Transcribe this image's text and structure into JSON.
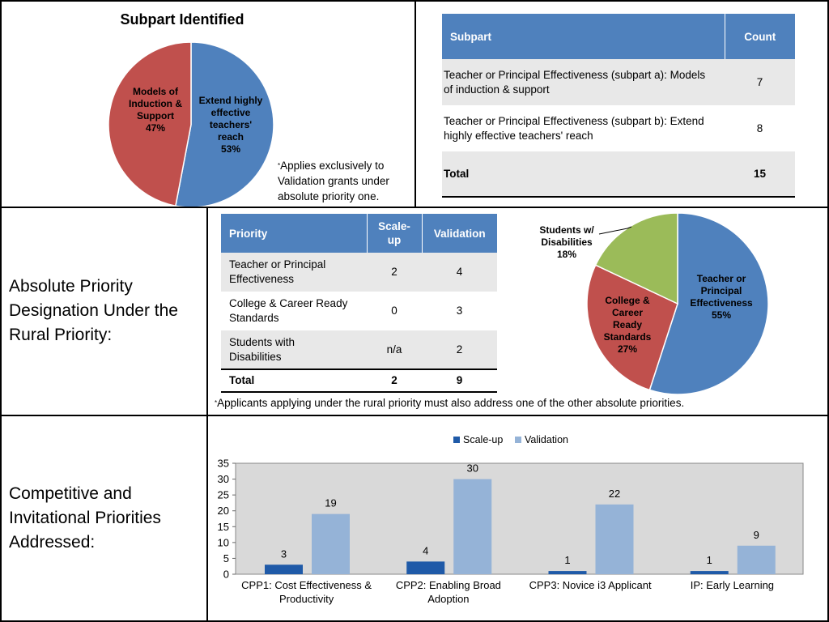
{
  "subpart": {
    "title": "Subpart Identified",
    "note": "Applies exclusively to Validation grants under absolute priority one.",
    "note_mark": "*",
    "table": {
      "headers": [
        "Subpart",
        "Count"
      ],
      "rows": [
        {
          "label": "Teacher or Principal Effectiveness (subpart a): Models of induction & support",
          "count": "7"
        },
        {
          "label": "Teacher or Principal Effectiveness (subpart b): Extend highly effective teachers' reach",
          "count": "8"
        }
      ],
      "total_label": "Total",
      "total_count": "15"
    }
  },
  "rural": {
    "label": "Absolute Priority Designation Under the Rural Priority:",
    "label_lines": [
      "Absolute Priority",
      "Designation Under the",
      "Rural Priority:"
    ],
    "note": "Applicants applying under the rural priority must also address one of the other absolute priorities.",
    "note_mark": "*",
    "table": {
      "headers": [
        "Priority",
        "Scale-up",
        "Validation"
      ],
      "header_scaleup_lines": [
        "Scale-",
        "up"
      ],
      "rows": [
        {
          "label_lines": [
            "Teacher or Principal",
            "Effectiveness"
          ],
          "scaleup": "2",
          "validation": "4"
        },
        {
          "label_lines": [
            "College & Career Ready",
            "Standards"
          ],
          "scaleup": "0",
          "validation": "3"
        },
        {
          "label_lines": [
            "Students with",
            "Disabilities"
          ],
          "scaleup": "n/a",
          "validation": "2"
        }
      ],
      "total_label": "Total",
      "total_scaleup": "2",
      "total_validation": "9"
    }
  },
  "competitive": {
    "label_lines": [
      "Competitive and",
      "Invitational Priorities",
      "Addressed:"
    ]
  },
  "colors": {
    "blue": "#4f81bd",
    "red": "#c0504d",
    "green": "#9bbb59",
    "bar_scaleup": "#1f5aa8",
    "bar_validation": "#95b3d7",
    "plot_bg": "#d9d9d9"
  },
  "chart_data": [
    {
      "type": "pie",
      "title": "Subpart Identified",
      "slices": [
        {
          "label_lines": [
            "Extend highly",
            "effective",
            "teachers'",
            "reach",
            "53%"
          ],
          "value": 53
        },
        {
          "label_lines": [
            "Models of",
            "Induction &",
            "Support",
            "47%"
          ],
          "value": 47
        }
      ]
    },
    {
      "type": "pie",
      "title": "",
      "slices": [
        {
          "label_lines": [
            "Teacher or",
            "Principal",
            "Effectiveness",
            "55%"
          ],
          "value": 55
        },
        {
          "label_lines": [
            "College &",
            "Career",
            "Ready",
            "Standards",
            "27%"
          ],
          "value": 27
        },
        {
          "label_lines": [
            "Students w/",
            "Disabilities",
            "18%"
          ],
          "value": 18
        }
      ]
    },
    {
      "type": "bar",
      "title": "",
      "categories": [
        {
          "lines": [
            "CPP1: Cost Effectiveness &",
            "Productivity"
          ]
        },
        {
          "lines": [
            "CPP2: Enabling Broad",
            "Adoption"
          ]
        },
        {
          "lines": [
            "CPP3: Novice i3 Applicant"
          ]
        },
        {
          "lines": [
            "IP: Early Learning"
          ]
        }
      ],
      "series": [
        {
          "name": "Scale-up",
          "values": [
            3,
            4,
            1,
            1
          ]
        },
        {
          "name": "Validation",
          "values": [
            19,
            30,
            22,
            9
          ]
        }
      ],
      "yticks": [
        "0",
        "5",
        "10",
        "15",
        "20",
        "25",
        "30",
        "35"
      ],
      "ylim": [
        0,
        35
      ],
      "legend": "top"
    }
  ]
}
